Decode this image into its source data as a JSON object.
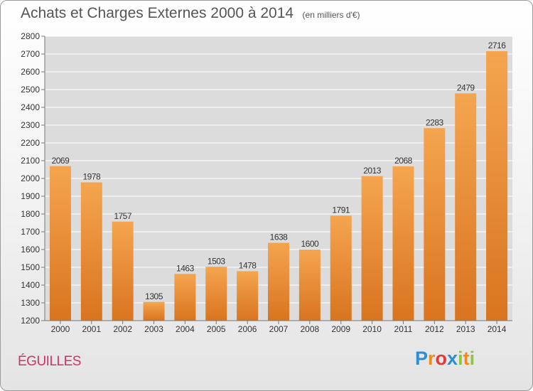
{
  "title": "Achats et Charges Externes 2000 à 2014",
  "unit": "(en milliers d'€)",
  "commune": "ÉGUILLES",
  "logo": {
    "letters": [
      {
        "ch": "P",
        "color": "#2b8ed6"
      },
      {
        "ch": "r",
        "color": "#f08a1c"
      },
      {
        "ch": "o",
        "color": "#e03a3a"
      },
      {
        "ch": "x",
        "color": "#2b8ed6"
      },
      {
        "ch": "i",
        "color": "#8cc63f"
      },
      {
        "ch": "t",
        "color": "#f08a1c"
      },
      {
        "ch": "i",
        "color": "#8cc63f"
      }
    ]
  },
  "chart_data": {
    "type": "bar",
    "categories": [
      "2000",
      "2001",
      "2002",
      "2003",
      "2004",
      "2005",
      "2006",
      "2007",
      "2008",
      "2009",
      "2010",
      "2011",
      "2012",
      "2013",
      "2014"
    ],
    "values": [
      2069,
      1978,
      1757,
      1305,
      1463,
      1503,
      1478,
      1638,
      1600,
      1791,
      2013,
      2068,
      2283,
      2479,
      2716
    ],
    "ylim": [
      1200,
      2800
    ],
    "yticks": [
      1200,
      1300,
      1400,
      1500,
      1600,
      1700,
      1800,
      1900,
      2000,
      2100,
      2200,
      2300,
      2400,
      2500,
      2600,
      2700,
      2800
    ],
    "grid": true,
    "bar_color_top": "#f5a54f",
    "bar_color_bottom": "#d9741f",
    "plot_background": "#dcdcdc"
  }
}
